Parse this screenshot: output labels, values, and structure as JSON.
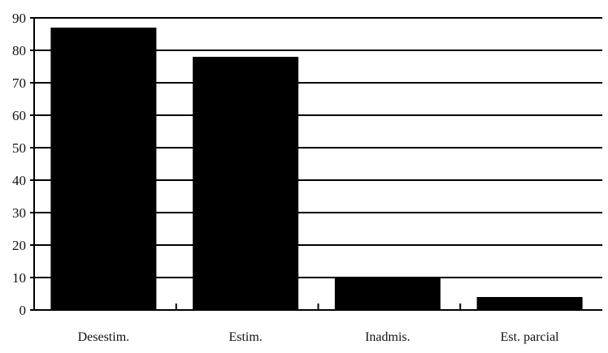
{
  "chart_data": {
    "type": "bar",
    "title": "",
    "xlabel": "",
    "ylabel": "",
    "categories": [
      "Desestim.",
      "Estim.",
      "Inadmis.",
      "Est. parcial"
    ],
    "values": [
      87,
      78,
      10,
      4
    ],
    "ylim": [
      0,
      90
    ],
    "yticks": [
      "0",
      "10",
      "20",
      "30",
      "40",
      "50",
      "60",
      "70",
      "80",
      "90"
    ],
    "grid": true,
    "legend": "none",
    "colors": {
      "bar": "#000000",
      "grid": "#000000",
      "axis": "#000000",
      "background": "#ffffff"
    }
  }
}
